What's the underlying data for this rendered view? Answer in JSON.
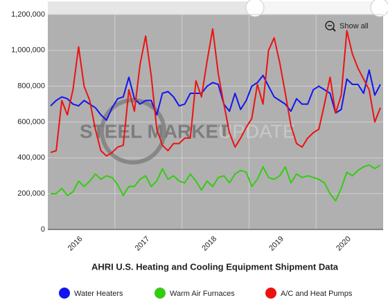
{
  "chart_data": {
    "type": "line",
    "title": "AHRI U.S. Heating and Cooling Equipment Shipment Data",
    "button": "Show all",
    "watermark": [
      "STEEL MARKET",
      "UPDATE"
    ],
    "categories": [
      null,
      null,
      null,
      null,
      null,
      null,
      "2016",
      null,
      null,
      null,
      null,
      null,
      null,
      null,
      null,
      null,
      null,
      null,
      "2017",
      null,
      null,
      null,
      null,
      null,
      null,
      null,
      null,
      null,
      null,
      null,
      "2018",
      null,
      null,
      null,
      null,
      null,
      null,
      null,
      null,
      null,
      null,
      null,
      "2019",
      null,
      null,
      null,
      null,
      null,
      null,
      null,
      null,
      null,
      null,
      null,
      "2020",
      null,
      null,
      null,
      null,
      null
    ],
    "ylim": [
      0,
      1200000
    ],
    "yticks": [
      0,
      {
        "value": 200000,
        "label": "200,000"
      },
      {
        "value": 400000,
        "label": "400,000"
      },
      {
        "value": 600000,
        "label": "600,000"
      },
      {
        "value": 800000,
        "label": "800,000"
      },
      {
        "value": 1000000,
        "label": "1,000,000"
      },
      {
        "value": 1200000,
        "label": "1,200,000"
      }
    ],
    "grid": true,
    "legend": "bottom",
    "series": [
      {
        "name": "Water Heaters",
        "color": "#1414f0",
        "values": [
          690000,
          720000,
          740000,
          730000,
          700000,
          690000,
          720000,
          700000,
          680000,
          640000,
          610000,
          680000,
          730000,
          740000,
          850000,
          730000,
          700000,
          720000,
          720000,
          640000,
          760000,
          770000,
          740000,
          690000,
          700000,
          760000,
          760000,
          760000,
          800000,
          820000,
          810000,
          700000,
          660000,
          760000,
          670000,
          720000,
          800000,
          820000,
          860000,
          800000,
          740000,
          720000,
          700000,
          660000,
          730000,
          700000,
          700000,
          780000,
          800000,
          780000,
          760000,
          650000,
          670000,
          840000,
          810000,
          810000,
          760000,
          890000,
          750000,
          810000
        ]
      },
      {
        "name": "Warm Air Furnaces",
        "color": "#33cc11",
        "values": [
          200000,
          200000,
          230000,
          190000,
          210000,
          270000,
          240000,
          270000,
          310000,
          280000,
          300000,
          290000,
          250000,
          190000,
          240000,
          240000,
          280000,
          300000,
          240000,
          270000,
          340000,
          280000,
          300000,
          270000,
          260000,
          310000,
          270000,
          220000,
          270000,
          240000,
          290000,
          300000,
          260000,
          310000,
          330000,
          320000,
          240000,
          280000,
          350000,
          290000,
          280000,
          300000,
          350000,
          260000,
          310000,
          290000,
          300000,
          290000,
          280000,
          260000,
          200000,
          160000,
          230000,
          320000,
          300000,
          330000,
          350000,
          360000,
          340000,
          360000
        ]
      },
      {
        "name": "A/C and Heat Pumps",
        "color": "#ee1111",
        "values": [
          430000,
          440000,
          720000,
          640000,
          780000,
          1020000,
          800000,
          720000,
          560000,
          440000,
          410000,
          430000,
          460000,
          470000,
          780000,
          660000,
          920000,
          1080000,
          860000,
          560000,
          470000,
          440000,
          480000,
          480000,
          510000,
          510000,
          830000,
          740000,
          940000,
          1120000,
          870000,
          700000,
          540000,
          460000,
          510000,
          570000,
          620000,
          810000,
          700000,
          1000000,
          1070000,
          930000,
          760000,
          580000,
          480000,
          460000,
          510000,
          540000,
          560000,
          700000,
          850000,
          650000,
          750000,
          1110000,
          980000,
          900000,
          840000,
          780000,
          600000,
          680000
        ]
      }
    ]
  }
}
